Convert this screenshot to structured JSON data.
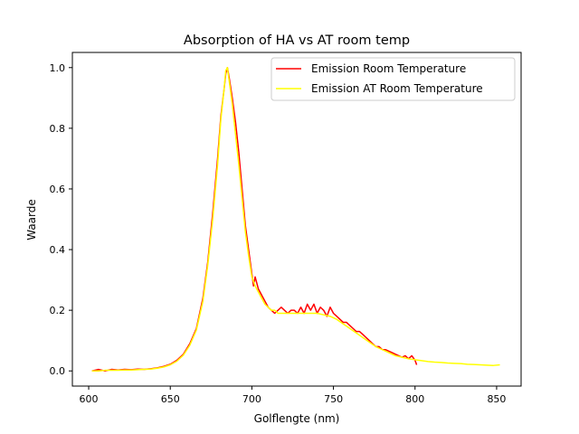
{
  "chart_data": {
    "type": "line",
    "title": "Absorption of HA vs AT room temp",
    "xlabel": "Golflengte (nm)",
    "ylabel": "Waarde",
    "xlim": [
      590,
      865
    ],
    "ylim": [
      -0.05,
      1.05
    ],
    "x_ticks": [
      600,
      650,
      700,
      750,
      800,
      850
    ],
    "y_ticks": [
      0.0,
      0.2,
      0.4,
      0.6,
      0.8,
      1.0
    ],
    "x_tick_labels": [
      "600",
      "650",
      "700",
      "750",
      "800",
      "850"
    ],
    "y_tick_labels": [
      "0.0",
      "0.2",
      "0.4",
      "0.6",
      "0.8",
      "1.0"
    ],
    "grid": false,
    "legend": "top-right",
    "series": [
      {
        "name": "Emission Room Temperature",
        "color": "#ff0000",
        "x": [
          602,
          606,
          610,
          614,
          618,
          622,
          626,
          630,
          634,
          638,
          642,
          646,
          650,
          654,
          658,
          662,
          666,
          670,
          673,
          676,
          679,
          681,
          683,
          684,
          685,
          686,
          688,
          690,
          692,
          694,
          696,
          698,
          700,
          701,
          702,
          703,
          704,
          706,
          708,
          710,
          712,
          714,
          716,
          718,
          720,
          722,
          724,
          726,
          728,
          730,
          732,
          734,
          736,
          738,
          740,
          742,
          744,
          746,
          748,
          750,
          752,
          754,
          756,
          758,
          760,
          762,
          764,
          766,
          768,
          770,
          772,
          774,
          776,
          778,
          780,
          782,
          784,
          786,
          788,
          790,
          792,
          794,
          796,
          798,
          800,
          801
        ],
        "y": [
          0.0,
          0.005,
          0.0,
          0.005,
          0.003,
          0.005,
          0.004,
          0.006,
          0.005,
          0.007,
          0.01,
          0.015,
          0.022,
          0.035,
          0.055,
          0.09,
          0.14,
          0.24,
          0.36,
          0.52,
          0.7,
          0.84,
          0.93,
          0.98,
          1.0,
          0.97,
          0.9,
          0.82,
          0.72,
          0.6,
          0.48,
          0.4,
          0.32,
          0.28,
          0.31,
          0.29,
          0.27,
          0.25,
          0.23,
          0.21,
          0.2,
          0.19,
          0.2,
          0.21,
          0.2,
          0.19,
          0.2,
          0.2,
          0.19,
          0.21,
          0.19,
          0.22,
          0.2,
          0.22,
          0.19,
          0.21,
          0.2,
          0.18,
          0.21,
          0.19,
          0.18,
          0.17,
          0.16,
          0.16,
          0.15,
          0.14,
          0.13,
          0.13,
          0.12,
          0.11,
          0.1,
          0.09,
          0.08,
          0.08,
          0.07,
          0.07,
          0.065,
          0.06,
          0.055,
          0.05,
          0.045,
          0.05,
          0.04,
          0.05,
          0.035,
          0.02
        ]
      },
      {
        "name": "Emission AT Room Temperature",
        "color": "#ffff00",
        "x": [
          602,
          606,
          610,
          614,
          618,
          622,
          626,
          630,
          634,
          638,
          642,
          646,
          650,
          654,
          658,
          662,
          666,
          670,
          673,
          676,
          679,
          681,
          683,
          684,
          685,
          686,
          688,
          690,
          692,
          694,
          696,
          698,
          700,
          702,
          704,
          706,
          708,
          710,
          712,
          714,
          716,
          718,
          720,
          724,
          728,
          732,
          736,
          740,
          744,
          748,
          752,
          756,
          760,
          764,
          768,
          772,
          776,
          780,
          784,
          788,
          792,
          796,
          800,
          804,
          808,
          812,
          816,
          820,
          824,
          828,
          832,
          836,
          840,
          844,
          848,
          852
        ],
        "y": [
          0.0,
          0.0,
          0.002,
          0.002,
          0.002,
          0.003,
          0.003,
          0.004,
          0.005,
          0.006,
          0.009,
          0.013,
          0.02,
          0.032,
          0.052,
          0.085,
          0.135,
          0.23,
          0.35,
          0.5,
          0.68,
          0.83,
          0.93,
          0.99,
          1.0,
          0.96,
          0.88,
          0.78,
          0.68,
          0.57,
          0.46,
          0.38,
          0.31,
          0.28,
          0.26,
          0.24,
          0.22,
          0.21,
          0.2,
          0.2,
          0.19,
          0.19,
          0.19,
          0.19,
          0.19,
          0.19,
          0.19,
          0.19,
          0.185,
          0.18,
          0.17,
          0.155,
          0.14,
          0.125,
          0.11,
          0.095,
          0.08,
          0.07,
          0.06,
          0.05,
          0.045,
          0.04,
          0.037,
          0.034,
          0.031,
          0.029,
          0.028,
          0.026,
          0.025,
          0.024,
          0.022,
          0.021,
          0.02,
          0.019,
          0.018,
          0.02
        ]
      }
    ]
  }
}
